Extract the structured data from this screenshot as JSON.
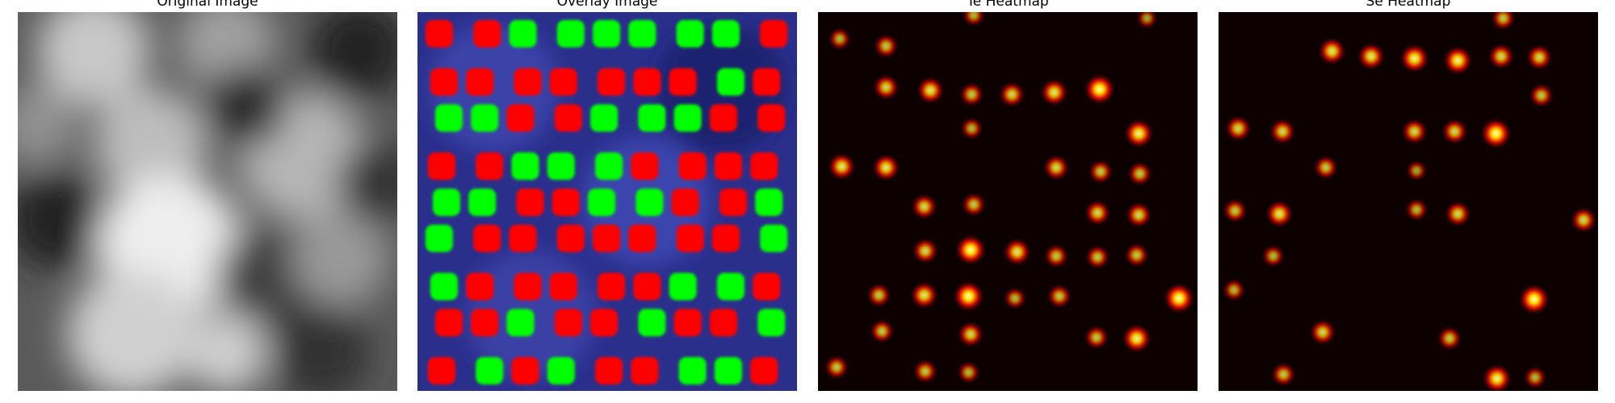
{
  "panels": [
    {
      "title": "Original Image"
    },
    {
      "title": "Overlay Image"
    },
    {
      "title": "Te Heatmap"
    },
    {
      "title": "Se Heatmap"
    }
  ]
}
